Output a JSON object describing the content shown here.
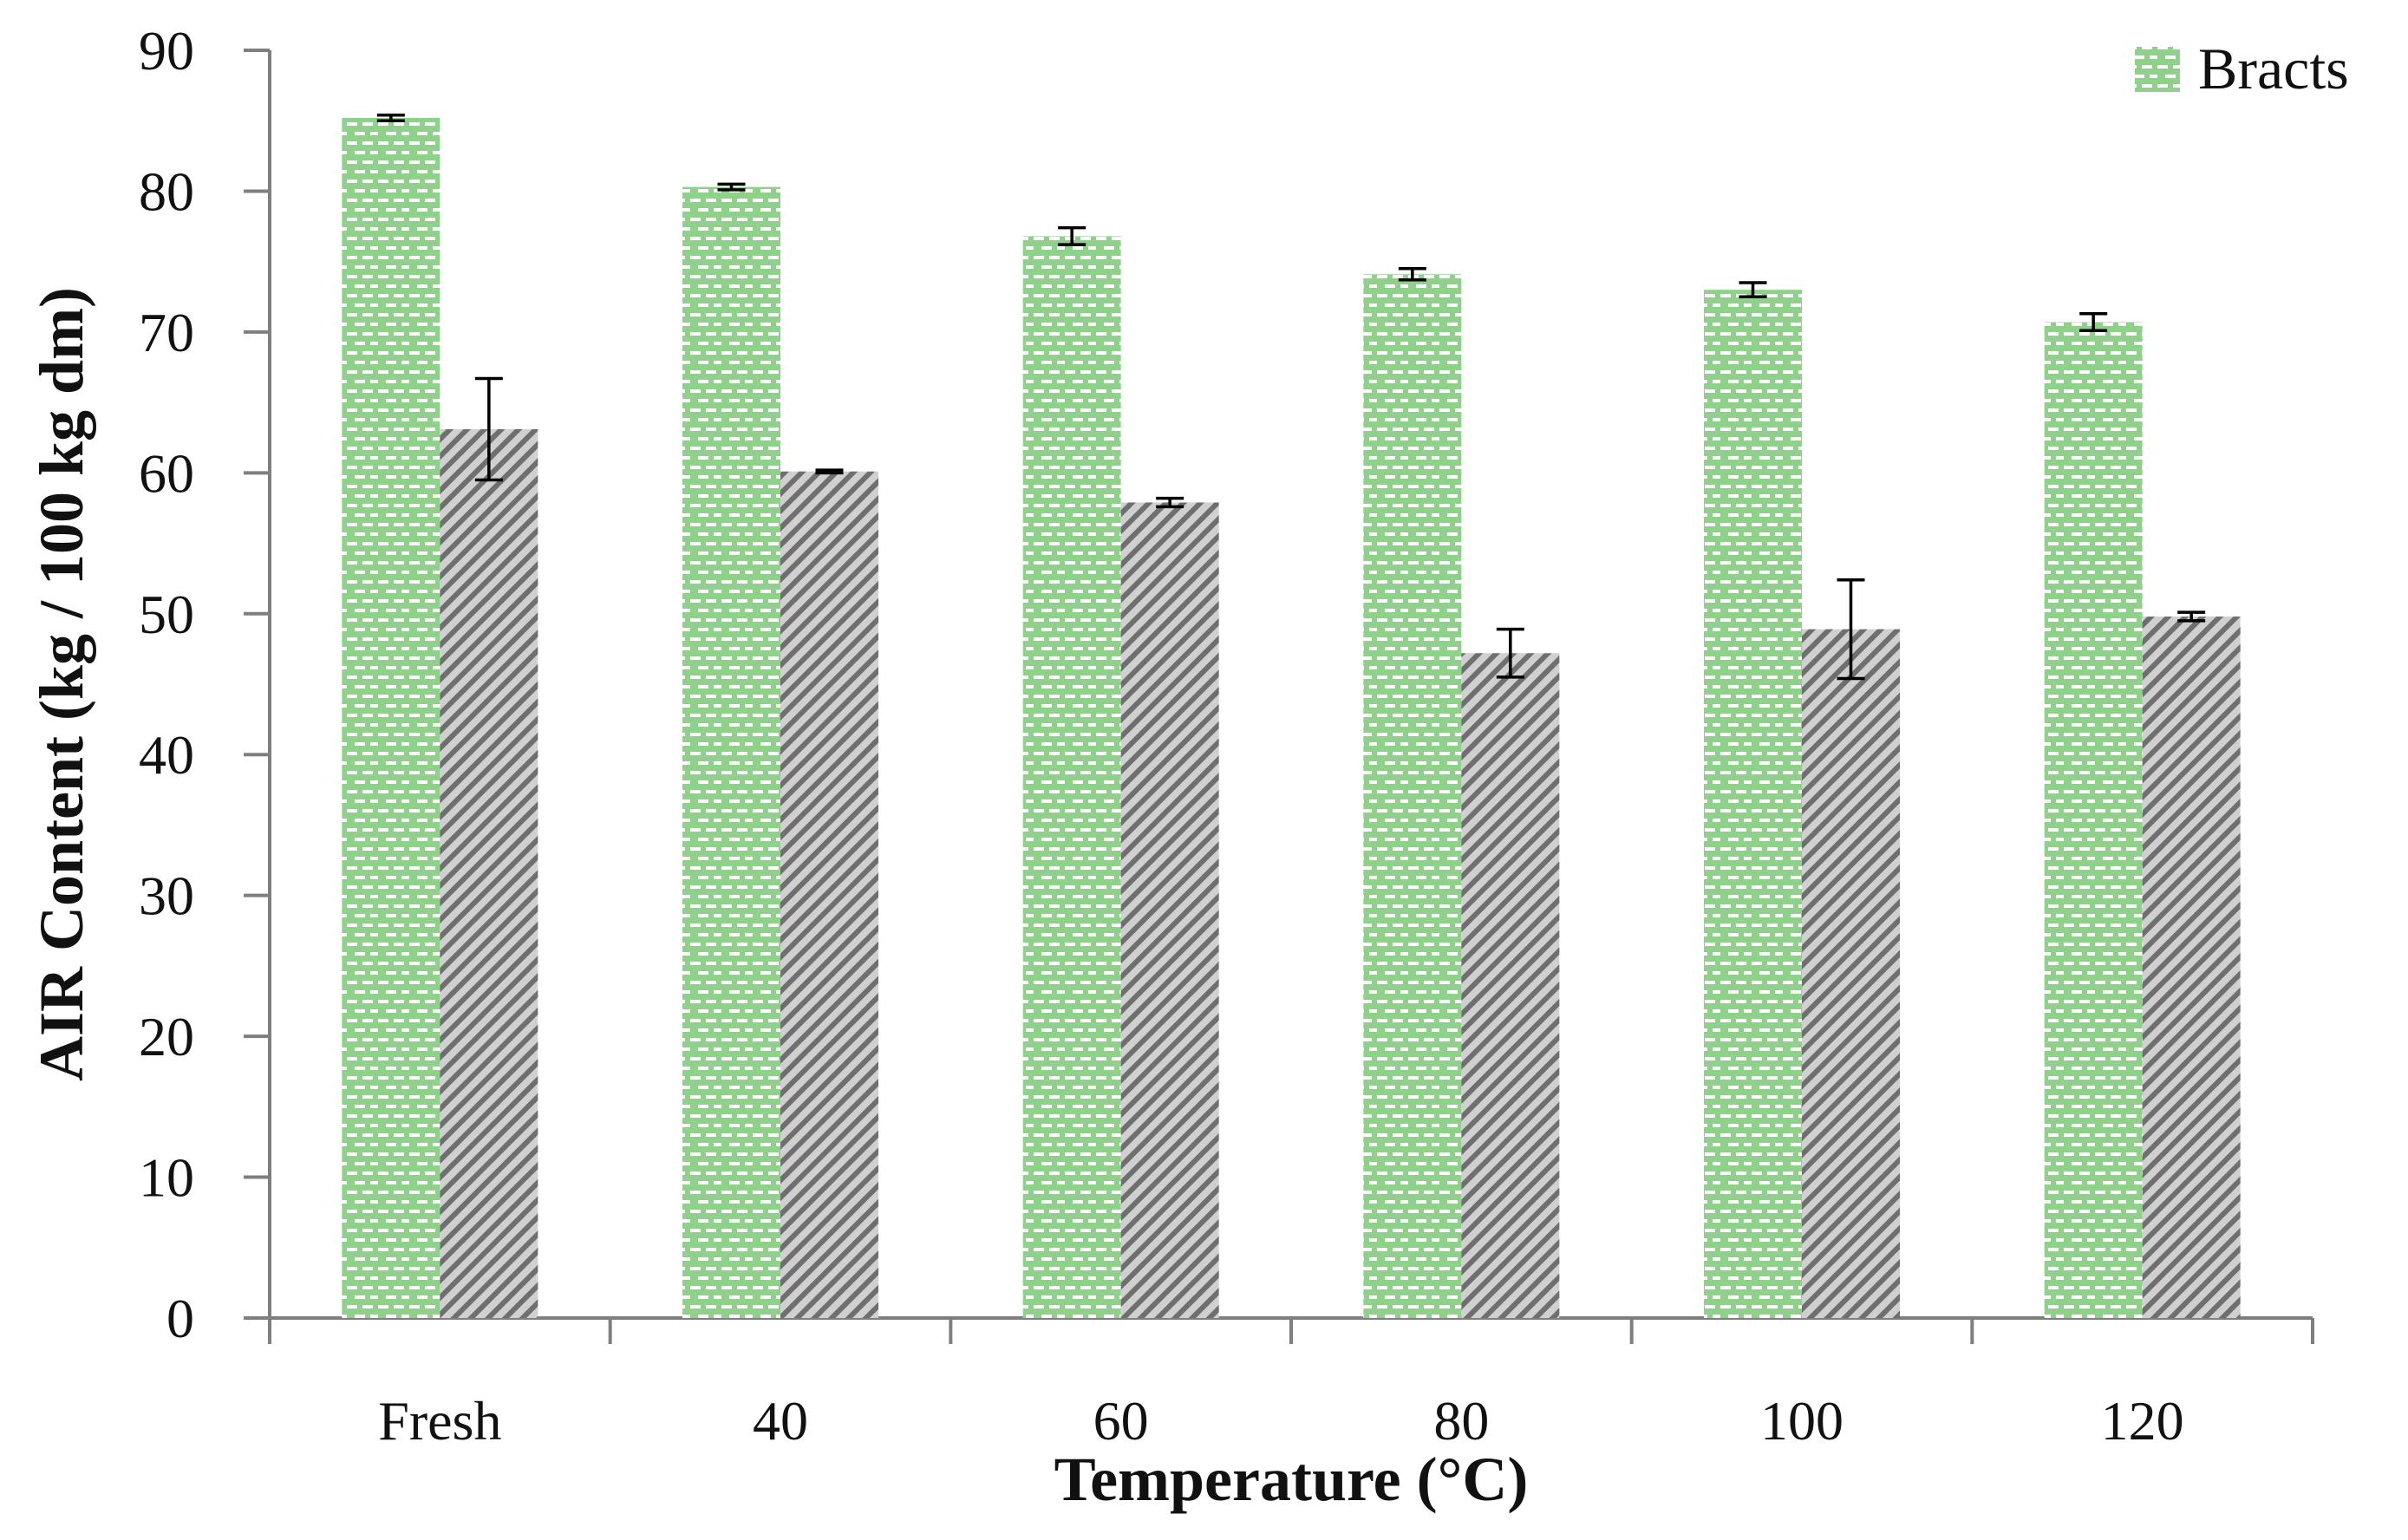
{
  "chart_data": {
    "type": "bar",
    "title": "",
    "xlabel": "Temperature (°C)",
    "ylabel": "AIR Content (kg / 100 kg dm)",
    "categories": [
      "Fresh",
      "40",
      "60",
      "80",
      "100",
      "120"
    ],
    "ylim": [
      0,
      90
    ],
    "yticks": [
      "0",
      "10",
      "20",
      "30",
      "40",
      "50",
      "60",
      "70",
      "80",
      "90"
    ],
    "grid": false,
    "legend_position": "top-right",
    "series": [
      {
        "name": "Bracts",
        "color": "#8fd18a",
        "pattern": "dashed-bricks",
        "values": [
          85.2,
          80.3,
          76.8,
          74.1,
          73.0,
          70.7
        ],
        "errors": [
          0.2,
          0.2,
          0.6,
          0.4,
          0.5,
          0.6
        ]
      },
      {
        "name": "",
        "color": "#9a9a9a",
        "pattern": "diagonal-stripes",
        "values": [
          63.1,
          60.1,
          57.9,
          47.2,
          48.9,
          49.8
        ],
        "errors": [
          3.6,
          0.1,
          0.3,
          1.7,
          3.5,
          0.3
        ]
      }
    ]
  }
}
